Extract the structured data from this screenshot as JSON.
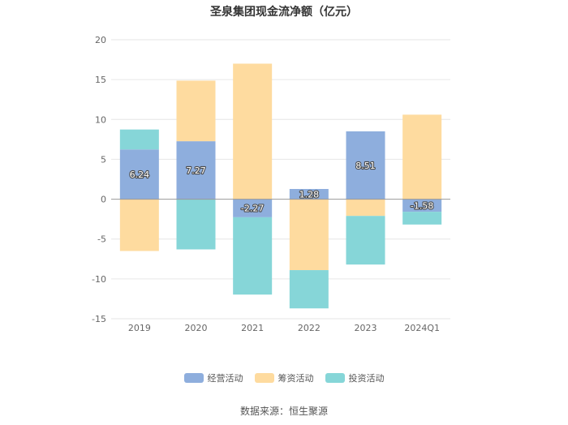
{
  "chart_data": {
    "type": "bar",
    "stacked": true,
    "title": "圣泉集团现金流净额（亿元）",
    "categories": [
      "2019",
      "2020",
      "2021",
      "2022",
      "2023",
      "2024Q1"
    ],
    "ylim": [
      -15,
      20
    ],
    "yticks": [
      20,
      15,
      10,
      5,
      0,
      -5,
      -10,
      -15
    ],
    "ytick_labels": [
      "20",
      "15",
      "10",
      "5",
      "0",
      "-5",
      "-10",
      "-15"
    ],
    "grid": true,
    "legend_position": "bottom-center",
    "series": [
      {
        "name": "经营活动",
        "color": "#8eaedd",
        "values": [
          6.24,
          7.27,
          -2.27,
          1.28,
          8.51,
          -1.58
        ],
        "labels": [
          "6.24",
          "7.27",
          "-2.27",
          "1.28",
          "8.51",
          "-1.58"
        ]
      },
      {
        "name": "筹资活动",
        "color": "#fedb9f",
        "values": [
          -6.5,
          7.6,
          17.0,
          -8.9,
          -2.1,
          10.6
        ]
      },
      {
        "name": "投资活动",
        "color": "#86d6d8",
        "values": [
          2.5,
          -6.3,
          -9.7,
          -4.8,
          -6.1,
          -1.6
        ]
      }
    ]
  },
  "source_text": "数据来源：恒生聚源"
}
